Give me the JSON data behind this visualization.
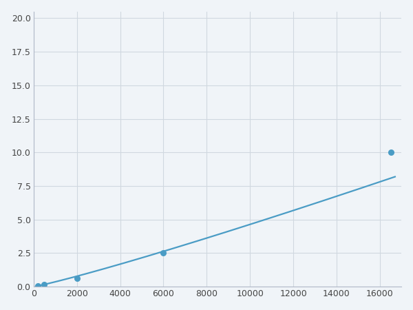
{
  "x_points": [
    200,
    500,
    2000,
    6000,
    16500
  ],
  "y_points": [
    0.08,
    0.14,
    0.6,
    2.5,
    10.0
  ],
  "line_color": "#4a9cc5",
  "marker_color": "#4a9cc5",
  "marker_size": 5.5,
  "line_width": 1.6,
  "xlim": [
    0,
    17000
  ],
  "ylim": [
    0,
    20.5
  ],
  "xticks": [
    0,
    2000,
    4000,
    6000,
    8000,
    10000,
    12000,
    14000,
    16000
  ],
  "yticks": [
    0.0,
    2.5,
    5.0,
    7.5,
    10.0,
    12.5,
    15.0,
    17.5,
    20.0
  ],
  "grid_color": "#d0d8e0",
  "background_color": "#f0f4f8",
  "spine_color": "#b0b8c8",
  "figure_bg": "#f0f4f8"
}
